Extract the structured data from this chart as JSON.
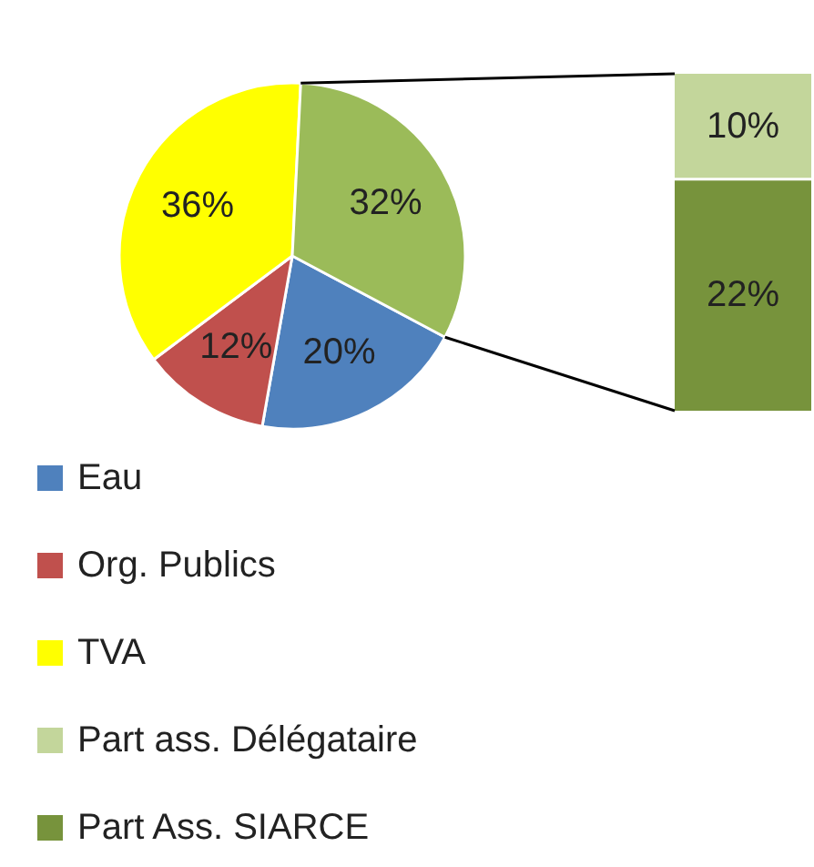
{
  "chart_data": [
    {
      "type": "pie",
      "categories": [
        "Eau",
        "Org. Publics",
        "TVA",
        null
      ],
      "values": [
        20,
        12,
        36,
        32
      ],
      "colors": [
        "#4f81bd",
        "#c0504d",
        "#ffff00",
        "#9bbb59"
      ],
      "value_labels": [
        "20%",
        "12%",
        "36%",
        "32%"
      ],
      "legend": "bottom"
    },
    {
      "type": "bar",
      "stacked": true,
      "categories": [
        null
      ],
      "series": [
        {
          "name": "Part Ass. SIARCE",
          "color": "#77933c",
          "values": [
            22
          ],
          "value_labels": [
            "22%"
          ]
        },
        {
          "name": "Part ass. Délégataire",
          "color": "#c3d69b",
          "values": [
            10
          ],
          "value_labels": [
            "10%"
          ]
        }
      ],
      "legend": "bottom"
    }
  ]
}
